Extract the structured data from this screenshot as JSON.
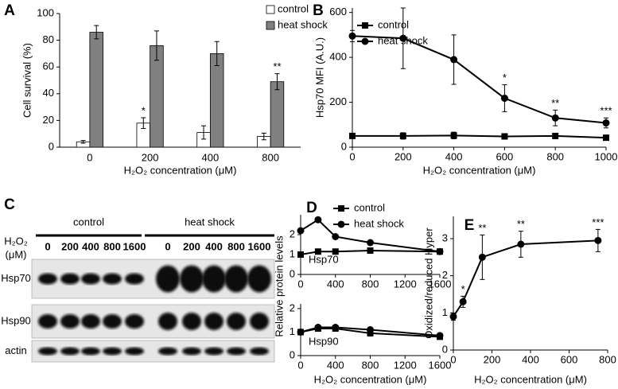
{
  "chart_data": [
    {
      "panel": "A",
      "type": "bar",
      "categories": [
        "0",
        "200",
        "400",
        "800"
      ],
      "series": [
        {
          "name": "control",
          "color": "#ffffff",
          "values": [
            4,
            18,
            11,
            8
          ],
          "errors": [
            1,
            4,
            5,
            2.5
          ]
        },
        {
          "name": "heat shock",
          "color": "#808080",
          "values": [
            86,
            76,
            70,
            49
          ],
          "errors": [
            5,
            11,
            9,
            6
          ]
        }
      ],
      "ylim": [
        0,
        100
      ],
      "yticks": [
        0,
        20,
        40,
        60,
        80,
        100
      ],
      "ylabel": "Cell survival (%)",
      "xlabel": "H₂O₂ concentration (μM)",
      "annotations": [
        {
          "category": "200",
          "series": "control",
          "text": "*"
        },
        {
          "category": "800",
          "series": "heat shock",
          "text": "**"
        }
      ]
    },
    {
      "panel": "B",
      "type": "line",
      "x": [
        0,
        200,
        400,
        600,
        800,
        1000
      ],
      "series": [
        {
          "name": "control",
          "color": "#000000",
          "marker": "square",
          "values": [
            50,
            50,
            52,
            48,
            50,
            42
          ],
          "errors": [
            12,
            14,
            15,
            12,
            12,
            10
          ]
        },
        {
          "name": "heat shock",
          "color": "#000000",
          "marker": "circle",
          "values": [
            495,
            485,
            390,
            218,
            130,
            108
          ],
          "errors": [
            25,
            135,
            110,
            60,
            35,
            22
          ]
        }
      ],
      "xlim": [
        0,
        1000
      ],
      "xticks": [
        0,
        200,
        400,
        600,
        800,
        1000
      ],
      "ylim": [
        0,
        620
      ],
      "yticks": [
        0,
        200,
        400,
        600
      ],
      "ylabel": "Hsp70 MFI (A.U.)",
      "xlabel": "H₂O₂ concentration (μM)",
      "annotations": [
        {
          "x": 600,
          "text": "*"
        },
        {
          "x": 800,
          "text": "**"
        },
        {
          "x": 1000,
          "text": "***"
        }
      ]
    },
    {
      "panel": "D",
      "type": "line",
      "label": "Hsp70",
      "x": [
        0,
        200,
        400,
        800,
        1600
      ],
      "series": [
        {
          "name": "control",
          "color": "#000000",
          "marker": "square",
          "values": [
            1,
            1.15,
            1.15,
            1.2,
            1.15
          ]
        },
        {
          "name": "heat shock",
          "color": "#000000",
          "marker": "circle",
          "values": [
            2.2,
            2.75,
            1.9,
            1.6,
            1.15
          ]
        }
      ],
      "xlim": [
        0,
        1600
      ],
      "xticks": [
        0,
        400,
        800,
        1200,
        1600
      ],
      "ylim": [
        0,
        3
      ],
      "yticks": [
        0,
        1,
        2
      ],
      "ylabel": "Relative protein levels"
    },
    {
      "type": "line",
      "label": "Hsp90",
      "x": [
        0,
        200,
        400,
        800,
        1600
      ],
      "series": [
        {
          "color": "#000000",
          "marker": "square",
          "values": [
            1,
            1.15,
            1.15,
            0.95,
            0.8
          ]
        },
        {
          "color": "#000000",
          "marker": "circle",
          "values": [
            1,
            1.2,
            1.2,
            1.1,
            0.85
          ]
        }
      ],
      "xlim": [
        0,
        1600
      ],
      "xticks": [
        0,
        400,
        800,
        1200,
        1600
      ],
      "ylim": [
        0,
        2.2
      ],
      "yticks": [
        0,
        1,
        2
      ],
      "xlabel": "H₂O₂ concentration (μM)"
    },
    {
      "panel": "E",
      "type": "line",
      "x": [
        0,
        50,
        150,
        350,
        750
      ],
      "series": [
        {
          "color": "#000000",
          "marker": "circle",
          "values": [
            0.9,
            1.3,
            2.5,
            2.85,
            2.95
          ],
          "errors": [
            0.1,
            0.15,
            0.6,
            0.35,
            0.3
          ]
        }
      ],
      "xlim": [
        0,
        800
      ],
      "xticks": [
        0,
        200,
        400,
        600,
        800
      ],
      "ylim": [
        0,
        3.6
      ],
      "yticks": [
        0,
        1,
        2,
        3
      ],
      "ylabel": "Oxidized/reduced Hyper",
      "xlabel": "H₂O₂ concentration (μM)",
      "annotations": [
        {
          "x": 50,
          "text": "*"
        },
        {
          "x": 150,
          "text": "**"
        },
        {
          "x": 350,
          "text": "**"
        },
        {
          "x": 750,
          "text": "***"
        }
      ]
    }
  ],
  "blot": {
    "panel": "C",
    "groups": [
      "control",
      "heat shock"
    ],
    "dose_label": [
      "H₂O₂",
      "(μM)"
    ],
    "lanes": [
      "0",
      "200",
      "400",
      "800",
      "1600",
      "0",
      "200",
      "400",
      "800",
      "1600"
    ],
    "rows": [
      "Hsp70",
      "Hsp90",
      "actin"
    ]
  }
}
